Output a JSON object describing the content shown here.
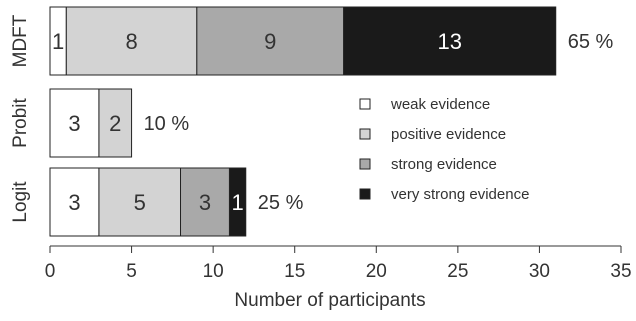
{
  "chart_data": {
    "type": "bar",
    "orientation": "horizontal",
    "stacked": true,
    "title": "",
    "xlabel": "Number of participants",
    "ylabel": "",
    "xlim": [
      0,
      35
    ],
    "x_ticks": [
      "0",
      "5",
      "10",
      "15",
      "20",
      "25",
      "30",
      "35"
    ],
    "categories": [
      "MDFT",
      "Probit",
      "Logit"
    ],
    "series": [
      {
        "name": "weak evidence",
        "color": "#ffffff",
        "values": [
          1,
          3,
          3
        ]
      },
      {
        "name": "positive evidence",
        "color": "#d3d3d3",
        "values": [
          8,
          2,
          5
        ]
      },
      {
        "name": "strong evidence",
        "color": "#a9a9a9",
        "values": [
          9,
          0,
          3
        ]
      },
      {
        "name": "very strong evidence",
        "color": "#1a1a1a",
        "values": [
          13,
          0,
          1
        ]
      }
    ],
    "segment_labels": [
      [
        "1",
        "8",
        "9",
        "13"
      ],
      [
        "3",
        "2",
        "",
        ""
      ],
      [
        "3",
        "5",
        "3",
        "1"
      ]
    ],
    "percent_labels": [
      "65 %",
      "10 %",
      "25 %"
    ],
    "legend_position": "right, inside plot",
    "grid": false
  }
}
